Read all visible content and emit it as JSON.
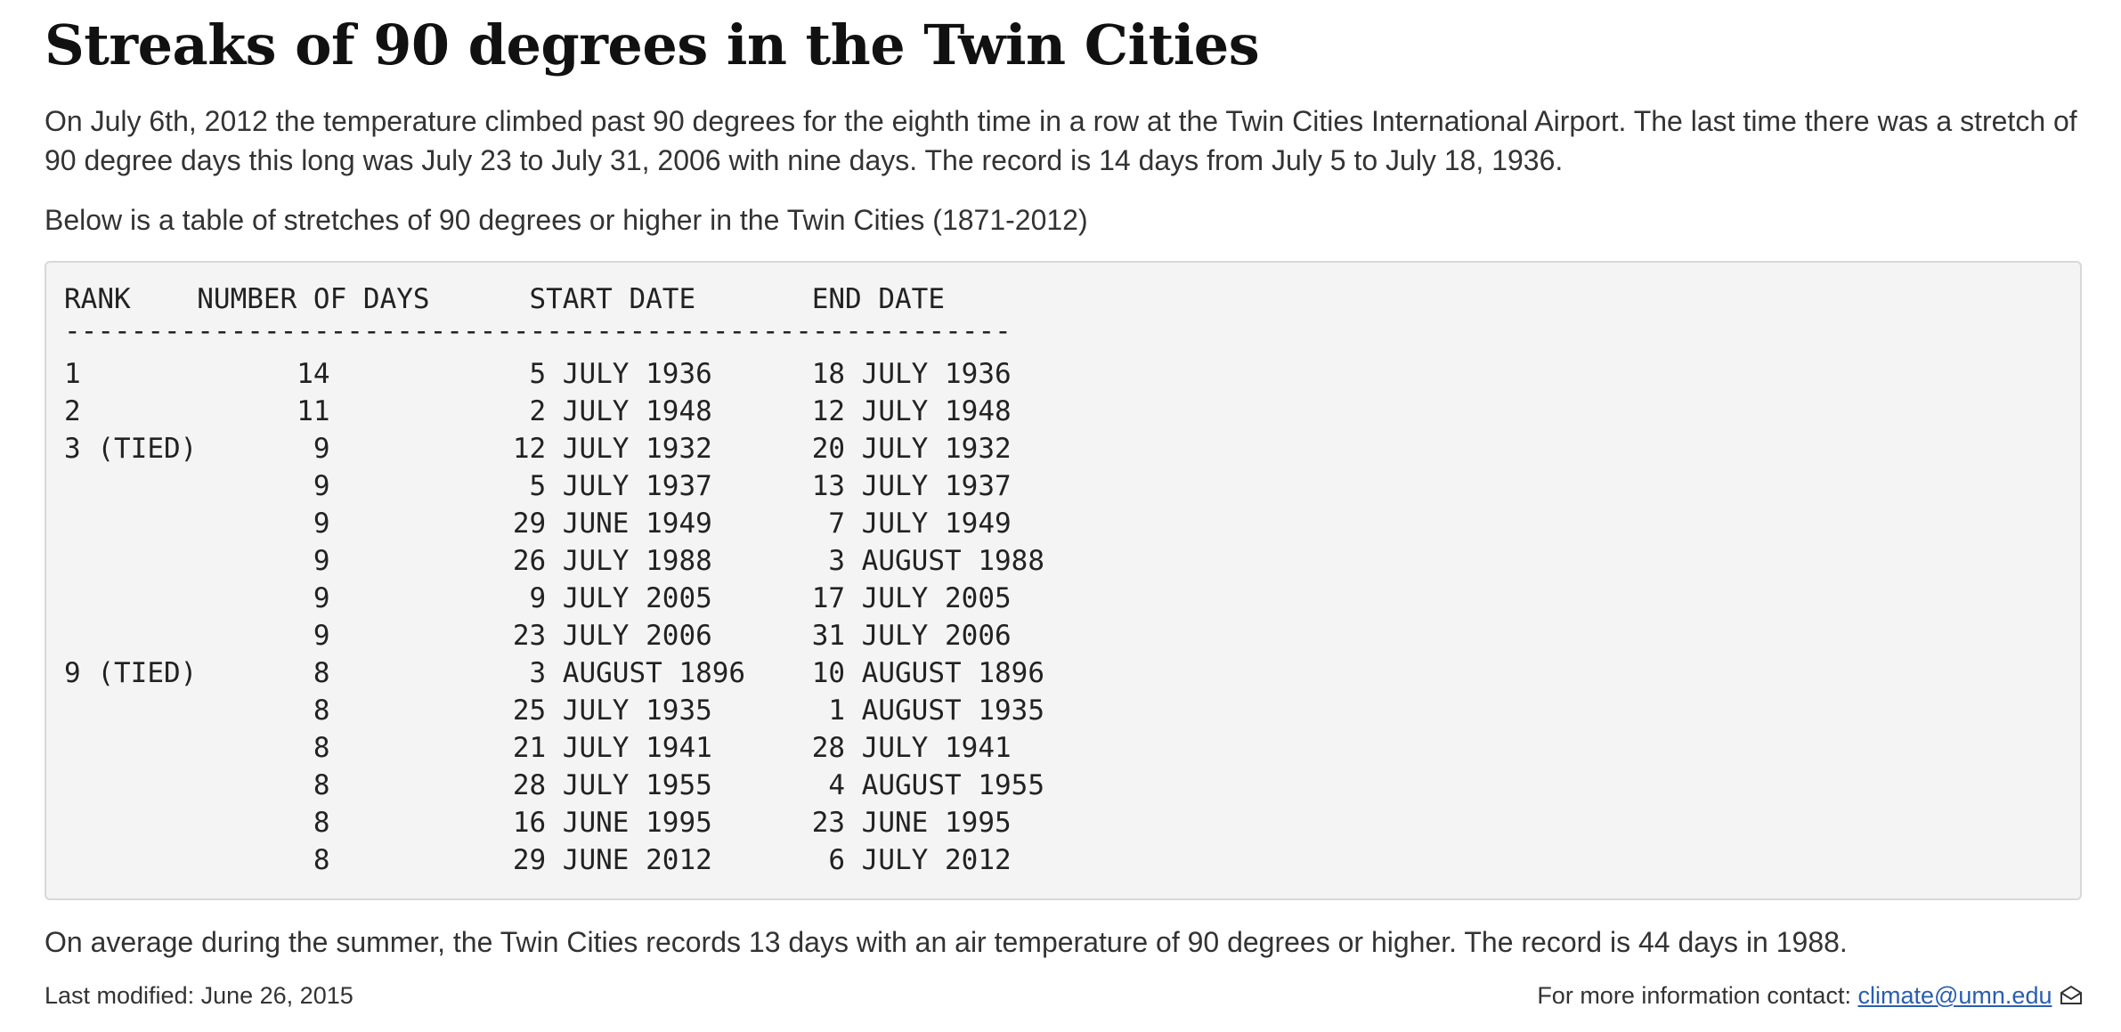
{
  "header": {
    "title": "Streaks of 90 degrees in the Twin Cities"
  },
  "intro": "On July 6th, 2012 the temperature climbed past 90 degrees for the eighth time in a row at the Twin Cities International Airport. The last time there was a stretch of 90 degree days this long was July 23 to July 31, 2006 with nine days. The record is 14 days from July 5 to July 18, 1936.",
  "table_intro": "Below is a table of stretches of 90 degrees or higher in the Twin Cities (1871-2012)",
  "table": {
    "columns": [
      "RANK",
      "NUMBER OF DAYS",
      "START DATE",
      "END DATE"
    ],
    "separator": "---------------------------------------------------------",
    "rows": [
      [
        "1",
        14,
        "5 JULY 1936",
        "18 JULY 1936"
      ],
      [
        "2",
        11,
        "2 JULY 1948",
        "12 JULY 1948"
      ],
      [
        "3 (TIED)",
        9,
        "12 JULY 1932",
        "20 JULY 1932"
      ],
      [
        null,
        9,
        "5 JULY 1937",
        "13 JULY 1937"
      ],
      [
        null,
        9,
        "29 JUNE 1949",
        "7 JULY 1949"
      ],
      [
        null,
        9,
        "26 JULY 1988",
        "3 AUGUST 1988"
      ],
      [
        null,
        9,
        "9 JULY 2005",
        "17 JULY 2005"
      ],
      [
        null,
        9,
        "23 JULY 2006",
        "31 JULY 2006"
      ],
      [
        "9 (TIED)",
        8,
        "3 AUGUST 1896",
        "10 AUGUST 1896"
      ],
      [
        null,
        8,
        "25 JULY 1935",
        "1 AUGUST 1935"
      ],
      [
        null,
        8,
        "21 JULY 1941",
        "28 JULY 1941"
      ],
      [
        null,
        8,
        "28 JULY 1955",
        "4 AUGUST 1955"
      ],
      [
        null,
        8,
        "16 JUNE 1995",
        "23 JUNE 1995"
      ],
      [
        null,
        8,
        "29 JUNE 2012",
        "6 JULY 2012"
      ]
    ]
  },
  "summary": "On average during the summer, the Twin Cities records 13 days with an air temperature of 90 degrees or higher. The record is 44 days in 1988.",
  "footer": {
    "modified": "Last modified: June 26, 2015",
    "contact_label": "For more information contact:",
    "email": "climate@umn.edu"
  }
}
